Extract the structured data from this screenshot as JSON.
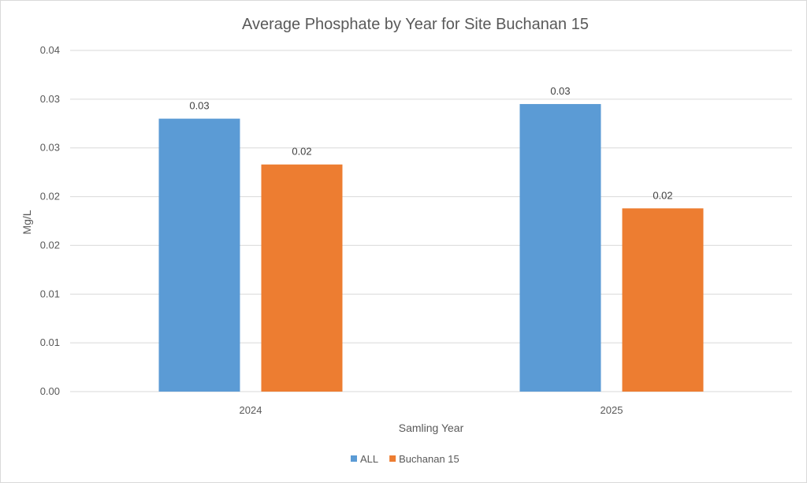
{
  "chart_data": {
    "type": "bar",
    "title": "Average Phosphate by Year for Site Buchanan 15",
    "xlabel": "Samling Year",
    "ylabel": "Mg/L",
    "categories": [
      "2024",
      "2025"
    ],
    "series": [
      {
        "name": "ALL",
        "color": "#5b9bd5",
        "values": [
          0.028,
          0.0295
        ],
        "labels": [
          "0.03",
          "0.03"
        ]
      },
      {
        "name": "Buchanan 15",
        "color": "#ed7d31",
        "values": [
          0.0233,
          0.0188
        ],
        "labels": [
          "0.02",
          "0.02"
        ]
      }
    ],
    "ylim": [
      0,
      0.035
    ],
    "ytick_values": [
      0,
      0.005,
      0.01,
      0.015,
      0.02,
      0.025,
      0.03,
      0.035
    ],
    "ytick_labels": [
      "0.00",
      "0.01",
      "0.01",
      "0.02",
      "0.02",
      "0.03",
      "0.03",
      "0.04"
    ],
    "grid": true,
    "legend": "bottom"
  }
}
